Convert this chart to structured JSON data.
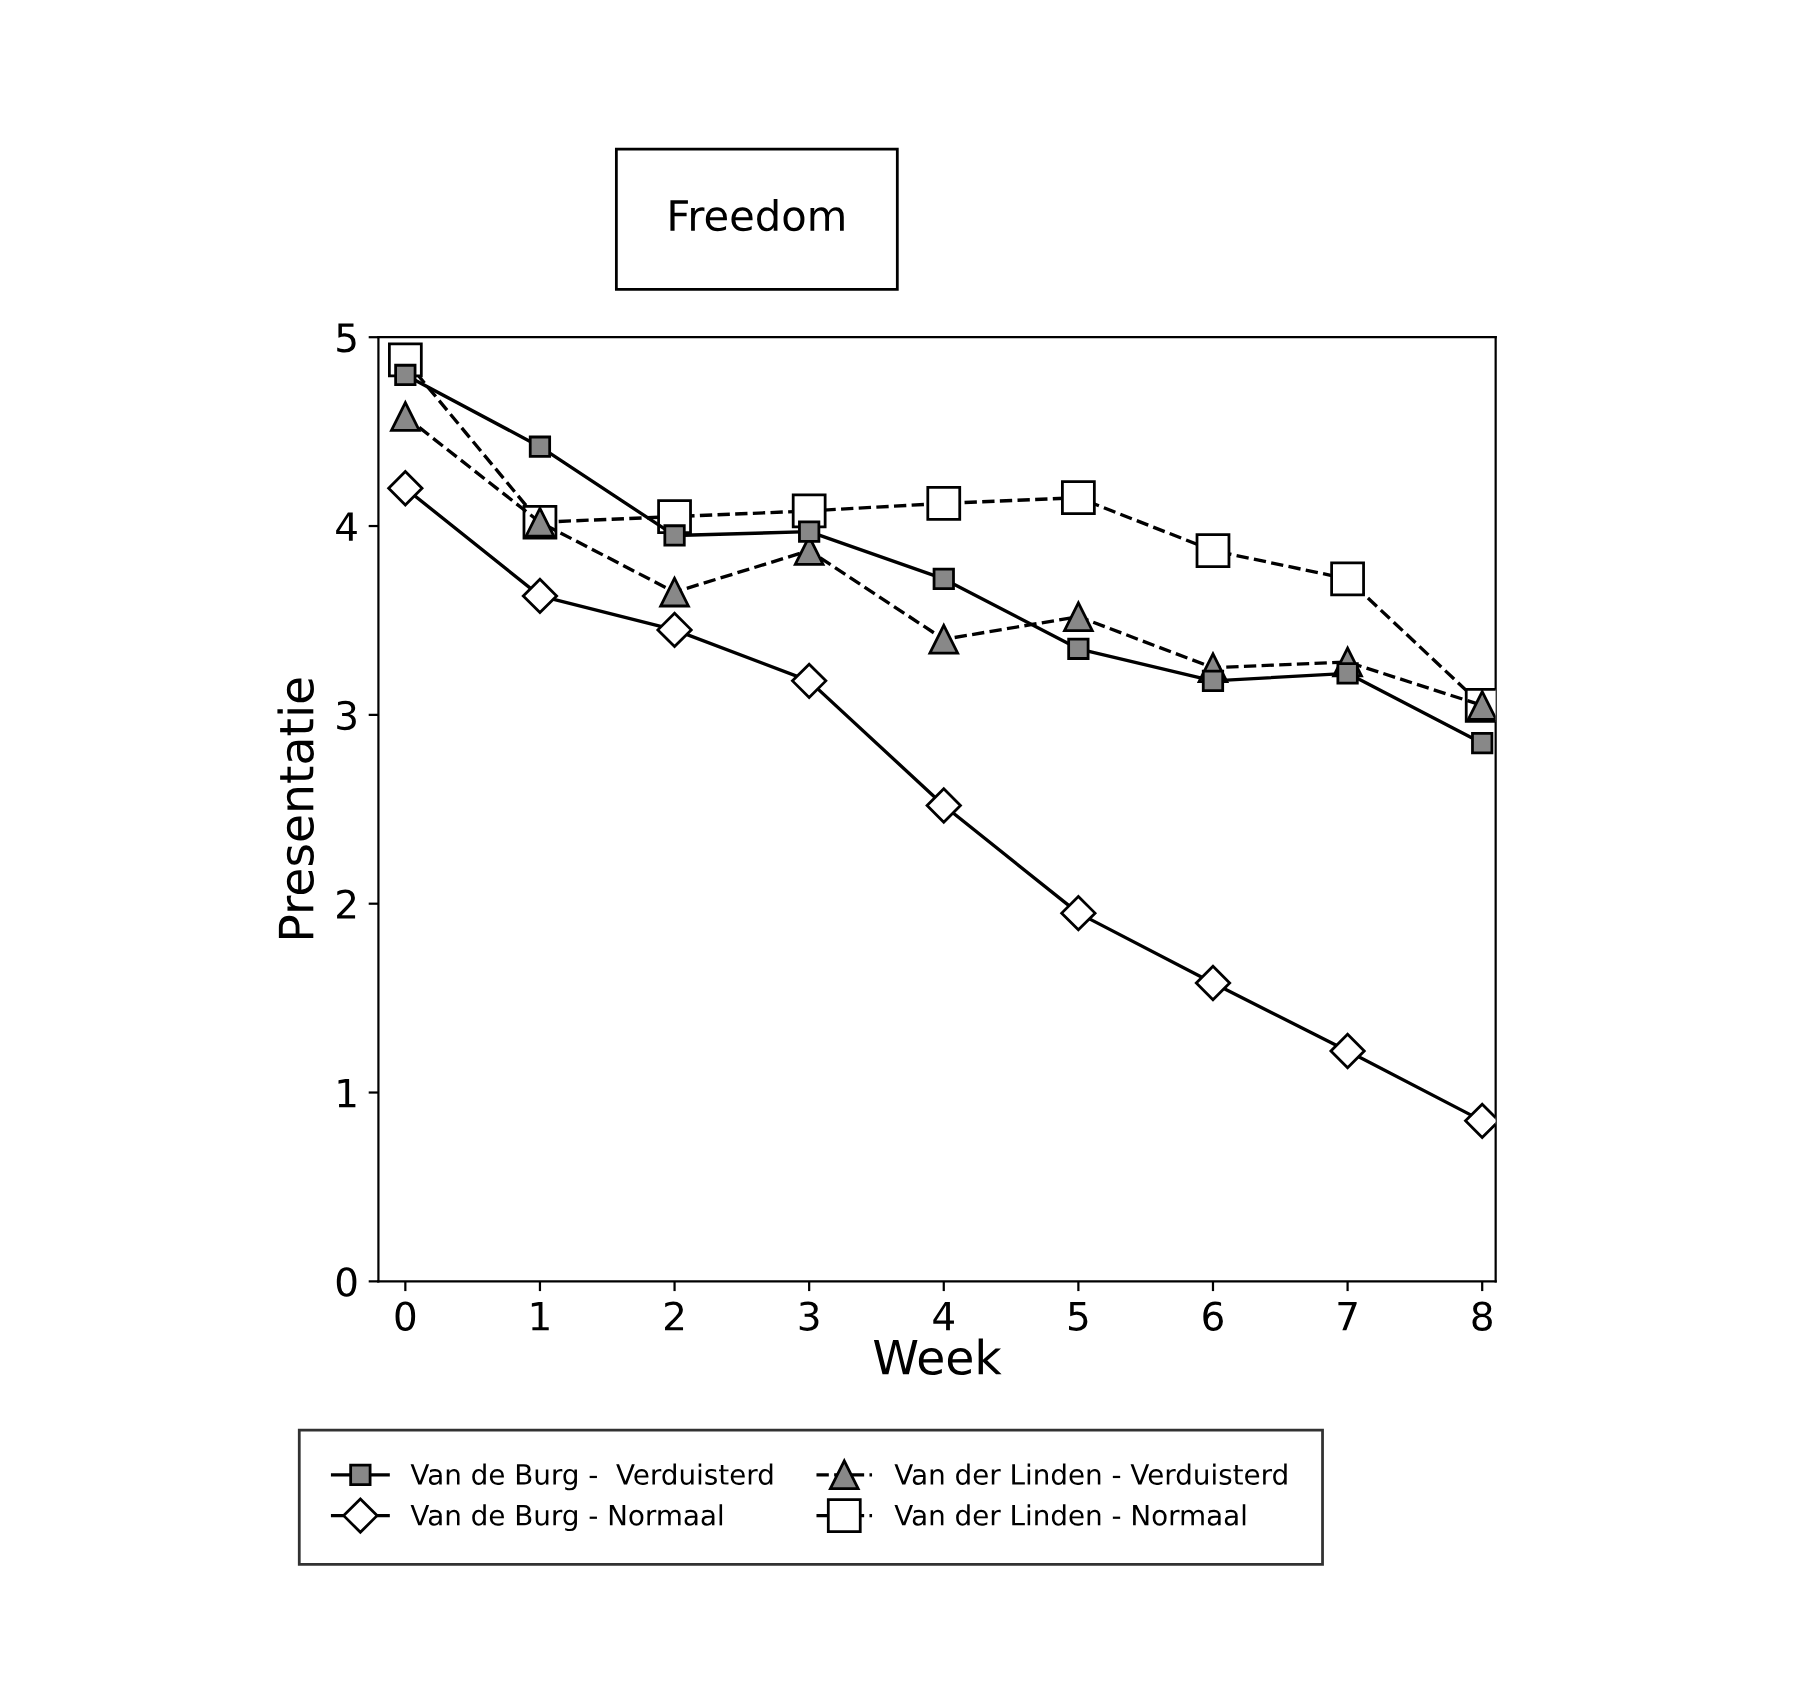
{
  "chart_data": {
    "type": "line",
    "title": "Freedom",
    "xlabel": "Week",
    "ylabel": "Presentatie",
    "x": [
      0,
      1,
      2,
      3,
      4,
      5,
      6,
      7,
      8
    ],
    "series": [
      {
        "name": "Van de Burg -  Verduisterd",
        "color": "#000000",
        "marker": "square",
        "line_style": "solid",
        "values": [
          4.8,
          4.42,
          3.95,
          3.97,
          3.72,
          3.35,
          3.18,
          3.22,
          2.85
        ]
      },
      {
        "name": "Van de Burg - Normaal",
        "color": "#000000",
        "marker": "diamond",
        "line_style": "solid",
        "values": [
          4.2,
          3.63,
          3.45,
          3.18,
          2.52,
          1.95,
          1.58,
          1.22,
          0.85
        ]
      },
      {
        "name": "Van der Linden - Verduisterd",
        "color": "#000000",
        "marker": "triangle",
        "line_style": "dashed",
        "values": [
          4.58,
          4.02,
          3.65,
          3.87,
          3.4,
          3.52,
          3.25,
          3.28,
          3.05
        ]
      },
      {
        "name": "Van der Linden - Normaal",
        "color": "#000000",
        "marker": "square",
        "line_style": "dashed",
        "values": [
          4.88,
          4.02,
          4.05,
          4.08,
          4.12,
          4.15,
          3.87,
          3.72,
          3.05
        ]
      }
    ],
    "xlim": [
      -0.2,
      8.1
    ],
    "ylim": [
      0,
      5
    ],
    "xticks": [
      0,
      1,
      2,
      3,
      4,
      5,
      6,
      7,
      8
    ],
    "yticks": [
      0,
      1,
      2,
      3,
      4,
      5
    ],
    "grid": false,
    "legend": "bottom"
  }
}
